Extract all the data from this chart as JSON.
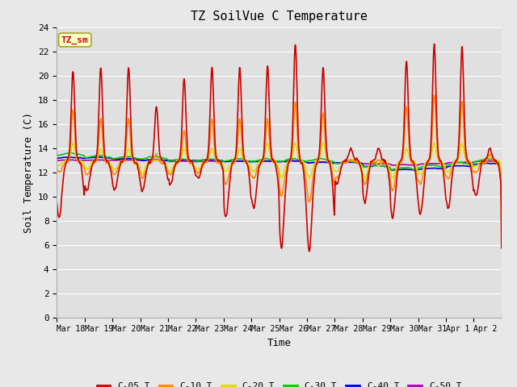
{
  "title": "TZ SoilVue C Temperature",
  "xlabel": "Time",
  "ylabel": "Soil Temperature (C)",
  "ylim": [
    0,
    24
  ],
  "yticks": [
    0,
    2,
    4,
    6,
    8,
    10,
    12,
    14,
    16,
    18,
    20,
    22,
    24
  ],
  "x_tick_labels": [
    "Mar 18",
    "Mar 19",
    "Mar 20",
    "Mar 21",
    "Mar 22",
    "Mar 23",
    "Mar 24",
    "Mar 25",
    "Mar 26",
    "Mar 27",
    "Mar 28",
    "Mar 29",
    "Mar 30",
    "Mar 31",
    "Apr 1",
    "Apr 2"
  ],
  "series_colors": {
    "C-05_T": "#cc0000",
    "C-10_T": "#ff8800",
    "C-20_T": "#dddd00",
    "C-30_T": "#00cc00",
    "C-40_T": "#0000dd",
    "C-50_T": "#aa00aa"
  },
  "annotation_text": "TZ_sm",
  "annotation_color": "#cc0000",
  "annotation_bg": "#ffffcc",
  "bg_color": "#e8e8e8",
  "plot_bg_color": "#e0e0e0",
  "grid_color": "#ffffff",
  "font_family": "monospace"
}
